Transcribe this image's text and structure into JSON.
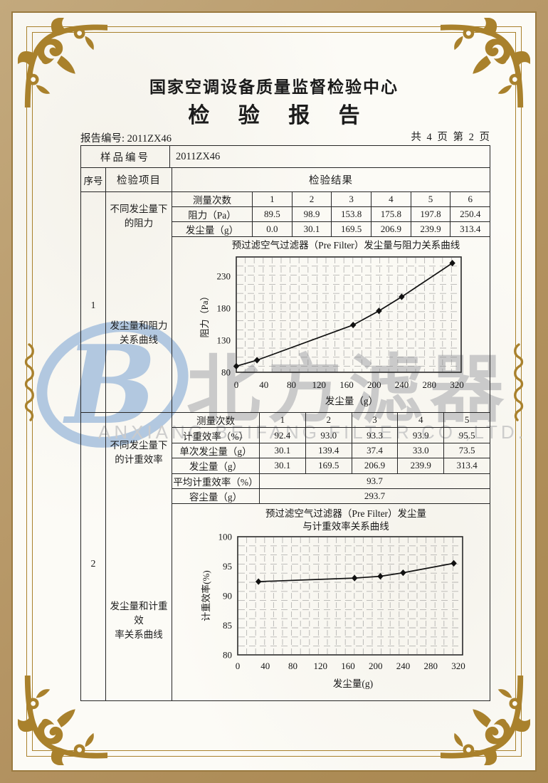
{
  "header": {
    "org_title": "国家空调设备质量监督检验中心",
    "report_title": "检 验 报 告",
    "report_no": "报告编号: 2011ZX46",
    "page_info": "共 4 页 第 2 页"
  },
  "table": {
    "sample_no_label": "样品编号",
    "sample_no_value": "2011ZX46",
    "col_seq": "序号",
    "col_item": "检验项目",
    "col_result": "检验结果"
  },
  "section1": {
    "seq": "1",
    "item_top_line1": "不同发尘量下",
    "item_top_line2": "的阻力",
    "item_bottom_line1": "发尘量和阻力",
    "item_bottom_line2": "关系曲线",
    "meas_table": {
      "header_label": "测量次数",
      "headers": [
        "1",
        "2",
        "3",
        "4",
        "5",
        "6"
      ],
      "rows": [
        {
          "label": "阻力（Pa）",
          "values": [
            "89.5",
            "98.9",
            "153.8",
            "175.8",
            "197.8",
            "250.4"
          ]
        },
        {
          "label": "发尘量（g）",
          "values": [
            "0.0",
            "30.1",
            "169.5",
            "206.9",
            "239.9",
            "313.4"
          ]
        }
      ]
    }
  },
  "section2": {
    "seq": "2",
    "item_top_line1": "不同发尘量下",
    "item_top_line2": "的计重效率",
    "item_bottom_line1": "发尘量和计重效",
    "item_bottom_line2": "率关系曲线",
    "meas_table": {
      "header_label": "测量次数",
      "headers": [
        "1",
        "2",
        "3",
        "4",
        "5"
      ],
      "rows": [
        {
          "label": "计重效率（%）",
          "values": [
            "92.4",
            "93.0",
            "93.3",
            "93.9",
            "95.5"
          ]
        },
        {
          "label": "单次发尘量（g）",
          "values": [
            "30.1",
            "139.4",
            "37.4",
            "33.0",
            "73.5"
          ]
        },
        {
          "label": "发尘量（g）",
          "values": [
            "30.1",
            "169.5",
            "206.9",
            "239.9",
            "313.4"
          ]
        }
      ],
      "summary_rows": [
        {
          "label": "平均计重效率（%）",
          "value": "93.7"
        },
        {
          "label": "容尘量（g）",
          "value": "293.7"
        }
      ]
    }
  },
  "chart_data": [
    {
      "type": "line",
      "title": "预过滤空气过滤器（Pre Filter）发尘量与阻力关系曲线",
      "title_lines": [
        "预过滤空气过滤器（Pre Filter）发尘量与阻力关系曲线"
      ],
      "xlabel": "发尘量（g）",
      "ylabel": "阻力（Pa）",
      "x": [
        0,
        30.1,
        169.5,
        206.9,
        239.9,
        313.4
      ],
      "y": [
        89.5,
        98.9,
        153.8,
        175.8,
        197.8,
        250.4
      ],
      "xlim": [
        0,
        320
      ],
      "ylim": [
        80,
        260
      ],
      "xticks": [
        0,
        40,
        80,
        120,
        160,
        200,
        240,
        280,
        320
      ],
      "yticks": [
        80,
        130,
        180,
        230
      ],
      "grid": true,
      "marker": "diamond",
      "legend_position": "none"
    },
    {
      "type": "line",
      "title": "预过滤空气过滤器（Pre Filter）发尘量与计重效率关系曲线",
      "title_lines": [
        "预过滤空气过滤器（Pre Filter）发尘量",
        "与计重效率关系曲线"
      ],
      "xlabel": "发尘量(g)",
      "ylabel": "计重效率(%)",
      "x": [
        30.1,
        169.5,
        206.9,
        239.9,
        313.4
      ],
      "y": [
        92.4,
        93.0,
        93.3,
        93.9,
        95.5
      ],
      "xlim": [
        0,
        320
      ],
      "ylim": [
        80,
        100
      ],
      "xticks": [
        0,
        40,
        80,
        120,
        160,
        200,
        240,
        280,
        320
      ],
      "yticks": [
        80,
        85,
        90,
        95,
        100
      ],
      "grid": true,
      "marker": "diamond",
      "legend_position": "none"
    }
  ],
  "watermark": {
    "logo_letter": "B",
    "cn": "北方滤器",
    "en": "ANXIANG BEIFANG FILTER CO.,LTD."
  },
  "colors": {
    "frame_gold": "#a9812c",
    "band_tan": "#b79c6e",
    "paper": "#fcfbf6",
    "ink": "#1b1b1b",
    "watermark_blue": "#b2c8e0",
    "watermark_gray": "#c7c7c7",
    "grid_gray": "#8a8a8a"
  }
}
